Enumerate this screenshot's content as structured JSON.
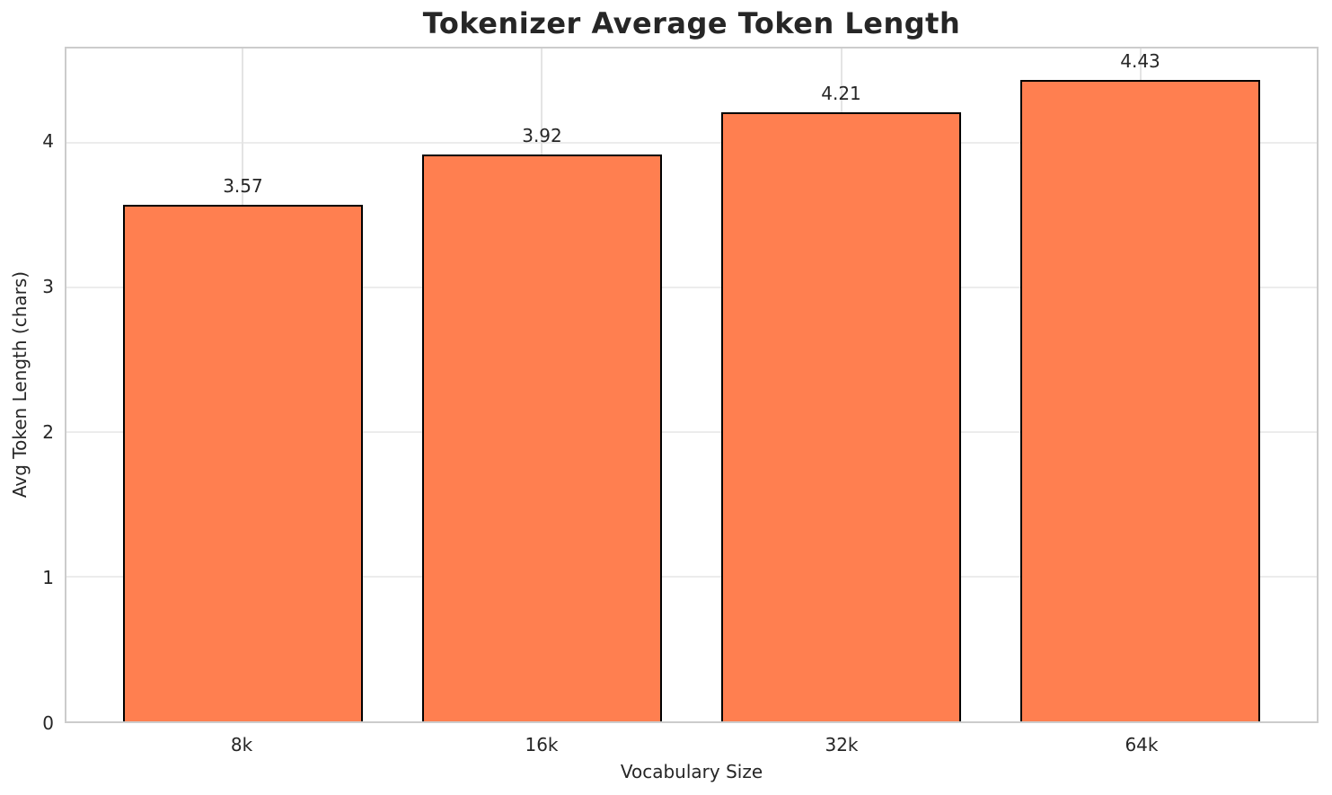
{
  "chart_data": {
    "type": "bar",
    "title": "Tokenizer Average Token Length",
    "xlabel": "Vocabulary Size",
    "ylabel": "Avg Token Length (chars)",
    "categories": [
      "8k",
      "16k",
      "32k",
      "64k"
    ],
    "values": [
      3.57,
      3.92,
      4.21,
      4.43
    ],
    "value_labels": [
      "3.57",
      "3.92",
      "4.21",
      "4.43"
    ],
    "yticks": [
      0,
      1,
      2,
      3,
      4
    ],
    "ylim": [
      0,
      4.65
    ],
    "bar_width_fraction": 0.8,
    "grid": true,
    "legend": "none",
    "colors": {
      "bar_fill": "#FF7F50",
      "bar_edge": "#000000",
      "grid_line": "#ececec",
      "spine": "#cccccc",
      "text": "#262626",
      "background": "#ffffff"
    }
  }
}
